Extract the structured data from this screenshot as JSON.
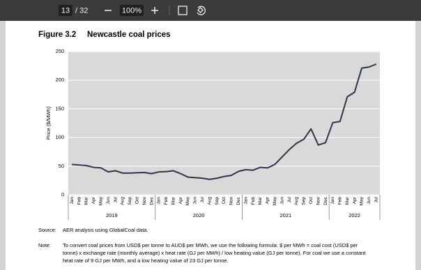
{
  "toolbar": {
    "page": "13",
    "total": "/ 32",
    "zoom": "100%"
  },
  "chart_data": {
    "type": "line",
    "title": "Figure 3.2",
    "subtitle": "Newcastle coal prices",
    "y_label": "Price ($/MWh)",
    "categories": [
      "Jan",
      "Feb",
      "Mar",
      "Apr",
      "May",
      "Jun",
      "Jul",
      "Aug",
      "Sep",
      "Oct",
      "Nov",
      "Dec",
      "Jan",
      "Feb",
      "Mar",
      "Apr",
      "May",
      "Jun",
      "Jul",
      "Aug",
      "Sep",
      "Oct",
      "Nov",
      "Dec",
      "Jan",
      "Feb",
      "Mar",
      "Apr",
      "May",
      "Jun",
      "Jul",
      "Aug",
      "Sep",
      "Oct",
      "Nov",
      "Dec",
      "Jan",
      "Feb",
      "Mar",
      "Apr",
      "May",
      "Jun",
      "Jul"
    ],
    "year_labels": [
      "2019",
      "2020",
      "2021",
      "2022"
    ],
    "values": [
      53,
      52,
      51,
      48,
      47,
      40,
      42,
      38,
      38,
      38.5,
      39,
      37,
      40,
      40.5,
      42,
      37,
      31,
      30,
      29,
      27,
      29,
      32,
      34,
      41,
      44,
      43,
      48,
      47,
      53,
      66,
      79,
      90,
      97,
      115,
      87,
      91,
      126,
      128,
      171,
      179,
      221,
      223,
      228
    ],
    "color": "#2b3648",
    "ylim": [
      0,
      250
    ],
    "yticks": [
      0,
      50,
      100,
      150,
      200,
      250
    ],
    "grid": true
  },
  "footer": {
    "source_label": "Source:",
    "source": "AER analysis using GlobalCoal data.",
    "note_label": "Note:",
    "note_lines": [
      "To convert coal prices from USD$ per tonne to AUD$ per MWh, we use the following formula: $ per MWh = coal cost (USD$ per",
      "tonne) x exchange rate (monthly average) x heat rate (GJ per MWh) / low heating value (GJ per tonne). For coal we use a constant",
      "heat rate of 9 GJ per MWh, and a low heating value of 23 GJ per tonne."
    ]
  }
}
